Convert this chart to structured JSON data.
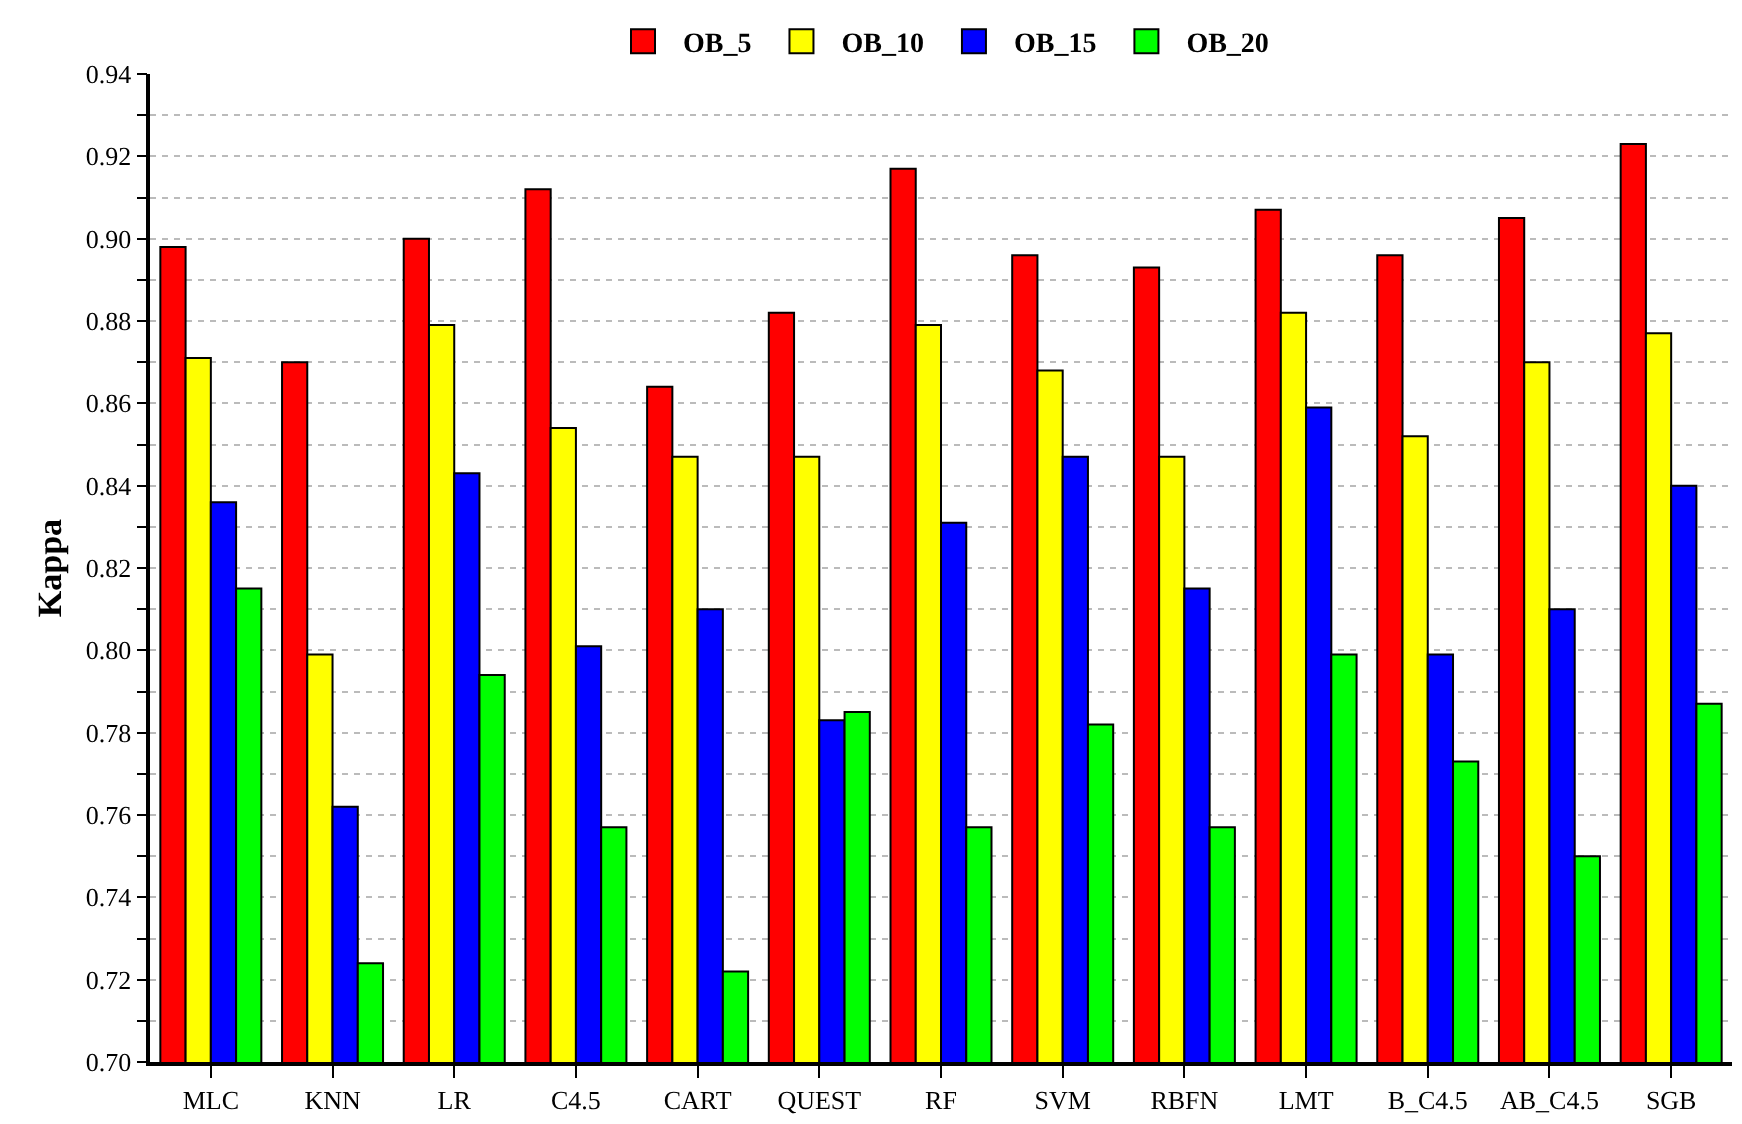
{
  "chart_data": {
    "type": "bar",
    "ylabel": "Kappa",
    "categories": [
      "MLC",
      "KNN",
      "LR",
      "C4.5",
      "CART",
      "QUEST",
      "RF",
      "SVM",
      "RBFN",
      "LMT",
      "B_C4.5",
      "AB_C4.5",
      "SGB"
    ],
    "series": [
      {
        "name": "OB_5",
        "color": "#ff0000",
        "values": [
          0.898,
          0.87,
          0.9,
          0.912,
          0.864,
          0.882,
          0.917,
          0.896,
          0.893,
          0.907,
          0.896,
          0.905,
          0.923
        ]
      },
      {
        "name": "OB_10",
        "color": "#ffff00",
        "values": [
          0.871,
          0.799,
          0.879,
          0.854,
          0.847,
          0.847,
          0.879,
          0.868,
          0.847,
          0.882,
          0.852,
          0.87,
          0.877
        ]
      },
      {
        "name": "OB_15",
        "color": "#0000ff",
        "values": [
          0.836,
          0.762,
          0.843,
          0.801,
          0.81,
          0.783,
          0.831,
          0.847,
          0.815,
          0.859,
          0.799,
          0.81,
          0.84
        ]
      },
      {
        "name": "OB_20",
        "color": "#00ff00",
        "values": [
          0.815,
          0.724,
          0.794,
          0.757,
          0.722,
          0.785,
          0.757,
          0.782,
          0.757,
          0.799,
          0.773,
          0.75,
          0.787
        ]
      }
    ],
    "ylim": [
      0.7,
      0.94
    ],
    "yticks": [
      {
        "value": 0.7,
        "label": "0.70"
      },
      {
        "value": 0.71,
        "label": null
      },
      {
        "value": 0.72,
        "label": "0.72"
      },
      {
        "value": 0.73,
        "label": null
      },
      {
        "value": 0.74,
        "label": "0.74"
      },
      {
        "value": 0.75,
        "label": null
      },
      {
        "value": 0.76,
        "label": "0.76"
      },
      {
        "value": 0.77,
        "label": null
      },
      {
        "value": 0.78,
        "label": "0.78"
      },
      {
        "value": 0.79,
        "label": null
      },
      {
        "value": 0.8,
        "label": "0.80"
      },
      {
        "value": 0.81,
        "label": null
      },
      {
        "value": 0.82,
        "label": "0.82"
      },
      {
        "value": 0.83,
        "label": null
      },
      {
        "value": 0.84,
        "label": "0.84"
      },
      {
        "value": 0.85,
        "label": null
      },
      {
        "value": 0.86,
        "label": "0.86"
      },
      {
        "value": 0.87,
        "label": null
      },
      {
        "value": 0.88,
        "label": "0.88"
      },
      {
        "value": 0.89,
        "label": null
      },
      {
        "value": 0.9,
        "label": "0.90"
      },
      {
        "value": 0.91,
        "label": null
      },
      {
        "value": 0.92,
        "label": "0.92"
      },
      {
        "value": 0.93,
        "label": null
      },
      {
        "value": 0.94,
        "label": "0.94"
      }
    ],
    "grid": "y",
    "legend": "top"
  }
}
